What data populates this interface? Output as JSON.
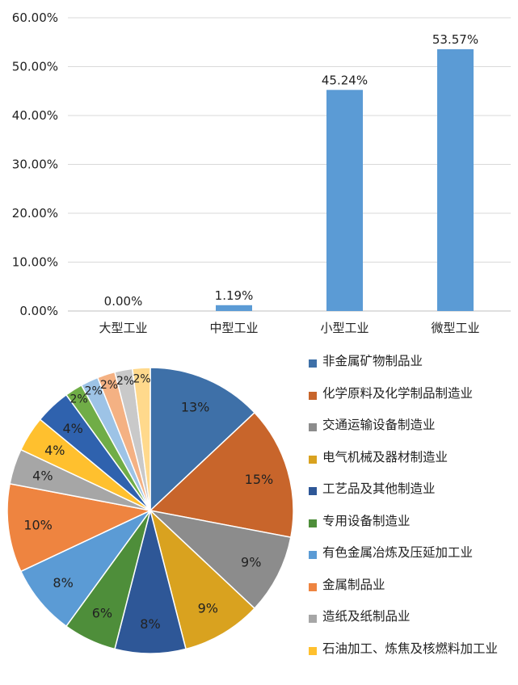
{
  "chart_data": [
    {
      "type": "bar",
      "categories": [
        "大型工业",
        "中型工业",
        "小型工业",
        "微型工业"
      ],
      "values": [
        0.0,
        1.19,
        45.24,
        53.57
      ],
      "value_labels": [
        "0.00%",
        "1.19%",
        "45.24%",
        "53.57%"
      ],
      "ytick_labels": [
        "0.00%",
        "10.00%",
        "20.00%",
        "30.00%",
        "40.00%",
        "50.00%",
        "60.00%"
      ],
      "ylim": [
        0,
        60
      ],
      "grid": true,
      "color": "#5B9BD5"
    },
    {
      "type": "pie",
      "start": "top",
      "direction": "clockwise",
      "slices": [
        {
          "label": "非金属矿物制品业",
          "value": 13,
          "text": "13%",
          "color": "#3E70A8"
        },
        {
          "label": "化学原料及化学制品制造业",
          "value": 15,
          "text": "15%",
          "color": "#C8652B"
        },
        {
          "label": "交通运输设备制造业",
          "value": 9,
          "text": "9%",
          "color": "#8C8C8C"
        },
        {
          "label": "电气机械及器材制造业",
          "value": 9,
          "text": "9%",
          "color": "#D9A21F"
        },
        {
          "label": "工艺品及其他制造业",
          "value": 8,
          "text": "8%",
          "color": "#2E5797"
        },
        {
          "label": "专用设备制造业",
          "value": 6,
          "text": "6%",
          "color": "#4E8E3A"
        },
        {
          "label": "有色金属冶炼及压延加工业",
          "value": 8,
          "text": "8%",
          "color": "#5B9BD5"
        },
        {
          "label": "金属制品业",
          "value": 10,
          "text": "10%",
          "color": "#EE8440"
        },
        {
          "label": "造纸及纸制品业",
          "value": 4,
          "text": "4%",
          "color": "#A6A6A6"
        },
        {
          "label": "石油加工、炼焦及核燃料加工业",
          "value": 4,
          "text": "4%",
          "color": "#FFC02E"
        },
        {
          "label": "",
          "value": 4,
          "text": "4%",
          "color": "#2F62AE"
        },
        {
          "label": "",
          "value": 2,
          "text": "2%",
          "color": "#70AD47"
        },
        {
          "label": "",
          "value": 2,
          "text": "2%",
          "color": "#9DC3E6"
        },
        {
          "label": "",
          "value": 2,
          "text": "2%",
          "color": "#F4B183"
        },
        {
          "label": "",
          "value": 2,
          "text": "2%",
          "color": "#C9C9C9"
        },
        {
          "label": "",
          "value": 2,
          "text": "2%",
          "color": "#FFD98C"
        }
      ],
      "legend_position": "right"
    }
  ]
}
